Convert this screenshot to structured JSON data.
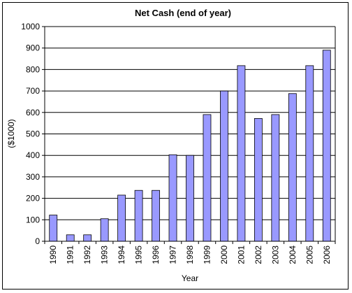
{
  "chart_data": {
    "type": "bar",
    "title": "Net Cash (end of year)",
    "xlabel": "Year",
    "ylabel": "($1000)",
    "ylim": [
      0,
      1000
    ],
    "yticks": [
      0,
      100,
      200,
      300,
      400,
      500,
      600,
      700,
      800,
      900,
      1000
    ],
    "grid": true,
    "legend": "none",
    "bar_color": "#9999ff",
    "categories": [
      "1990",
      "1991",
      "1992",
      "1993",
      "1994",
      "1995",
      "1996",
      "1997",
      "1998",
      "1999",
      "2000",
      "2001",
      "2002",
      "2003",
      "2004",
      "2005",
      "2006"
    ],
    "values": [
      122,
      30,
      30,
      105,
      215,
      237,
      237,
      403,
      400,
      590,
      700,
      818,
      572,
      590,
      688,
      818,
      890
    ]
  }
}
